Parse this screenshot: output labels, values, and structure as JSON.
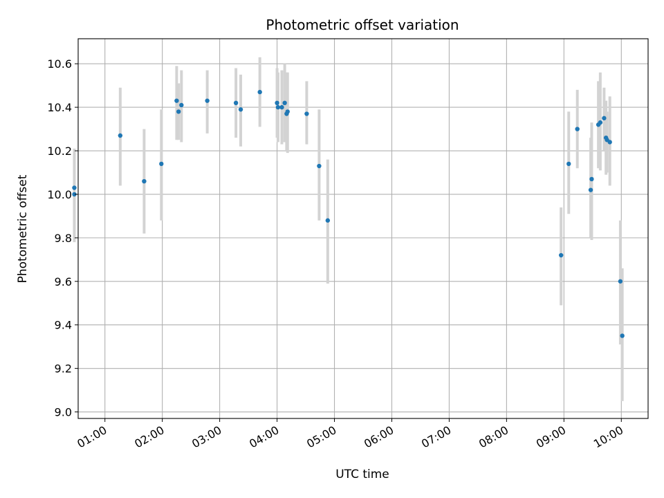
{
  "chart_data": {
    "type": "scatter",
    "title": "Photometric offset variation",
    "xlabel": "UTC time",
    "ylabel": "Photometric offset",
    "xlim": [
      "00:32",
      "10:28"
    ],
    "ylim": [
      8.97,
      10.715
    ],
    "x_ticks": [
      "01:00",
      "02:00",
      "03:00",
      "04:00",
      "05:00",
      "06:00",
      "07:00",
      "08:00",
      "09:00",
      "10:00"
    ],
    "y_ticks": [
      9.0,
      9.2,
      9.4,
      9.6,
      9.8,
      10.0,
      10.2,
      10.4,
      10.6
    ],
    "grid": true,
    "point_color": "#1f77b4",
    "errorbar_color": "#d3d3d3",
    "points": [
      {
        "x": "00:28",
        "y": 10.03,
        "lo": 9.84,
        "hi": 10.21
      },
      {
        "x": "00:28",
        "y": 10.0,
        "lo": 9.78,
        "hi": 10.19
      },
      {
        "x": "01:16",
        "y": 10.27,
        "lo": 10.04,
        "hi": 10.49
      },
      {
        "x": "01:41",
        "y": 10.06,
        "lo": 9.82,
        "hi": 10.3
      },
      {
        "x": "01:59",
        "y": 10.14,
        "lo": 9.88,
        "hi": 10.39
      },
      {
        "x": "02:15",
        "y": 10.43,
        "lo": 10.25,
        "hi": 10.59
      },
      {
        "x": "02:17",
        "y": 10.38,
        "lo": 10.25,
        "hi": 10.51
      },
      {
        "x": "02:20",
        "y": 10.41,
        "lo": 10.24,
        "hi": 10.57
      },
      {
        "x": "02:47",
        "y": 10.43,
        "lo": 10.28,
        "hi": 10.57
      },
      {
        "x": "03:17",
        "y": 10.42,
        "lo": 10.26,
        "hi": 10.58
      },
      {
        "x": "03:22",
        "y": 10.39,
        "lo": 10.22,
        "hi": 10.55
      },
      {
        "x": "03:42",
        "y": 10.47,
        "lo": 10.31,
        "hi": 10.63
      },
      {
        "x": "04:00",
        "y": 10.42,
        "lo": 10.26,
        "hi": 10.58
      },
      {
        "x": "04:01",
        "y": 10.4,
        "lo": 10.24,
        "hi": 10.56
      },
      {
        "x": "04:05",
        "y": 10.4,
        "lo": 10.23,
        "hi": 10.57
      },
      {
        "x": "04:08",
        "y": 10.42,
        "lo": 10.24,
        "hi": 10.6
      },
      {
        "x": "04:10",
        "y": 10.37,
        "lo": 10.2,
        "hi": 10.56
      },
      {
        "x": "04:11",
        "y": 10.38,
        "lo": 10.19,
        "hi": 10.56
      },
      {
        "x": "04:31",
        "y": 10.37,
        "lo": 10.23,
        "hi": 10.52
      },
      {
        "x": "04:44",
        "y": 10.13,
        "lo": 9.88,
        "hi": 10.39
      },
      {
        "x": "04:53",
        "y": 9.88,
        "lo": 9.59,
        "hi": 10.16
      },
      {
        "x": "08:57",
        "y": 9.72,
        "lo": 9.49,
        "hi": 9.94
      },
      {
        "x": "09:05",
        "y": 10.14,
        "lo": 9.91,
        "hi": 10.38
      },
      {
        "x": "09:14",
        "y": 10.3,
        "lo": 10.12,
        "hi": 10.48
      },
      {
        "x": "09:28",
        "y": 10.02,
        "lo": 9.8,
        "hi": 10.26
      },
      {
        "x": "09:29",
        "y": 10.07,
        "lo": 9.79,
        "hi": 10.33
      },
      {
        "x": "09:36",
        "y": 10.32,
        "lo": 10.12,
        "hi": 10.52
      },
      {
        "x": "09:38",
        "y": 10.33,
        "lo": 10.11,
        "hi": 10.56
      },
      {
        "x": "09:42",
        "y": 10.35,
        "lo": 10.2,
        "hi": 10.49
      },
      {
        "x": "09:44",
        "y": 10.26,
        "lo": 10.09,
        "hi": 10.43
      },
      {
        "x": "09:45",
        "y": 10.25,
        "lo": 10.1,
        "hi": 10.38
      },
      {
        "x": "09:48",
        "y": 10.24,
        "lo": 10.04,
        "hi": 10.45
      },
      {
        "x": "09:59",
        "y": 9.6,
        "lo": 9.31,
        "hi": 9.88
      },
      {
        "x": "10:01",
        "y": 9.35,
        "lo": 9.05,
        "hi": 9.66
      }
    ]
  }
}
